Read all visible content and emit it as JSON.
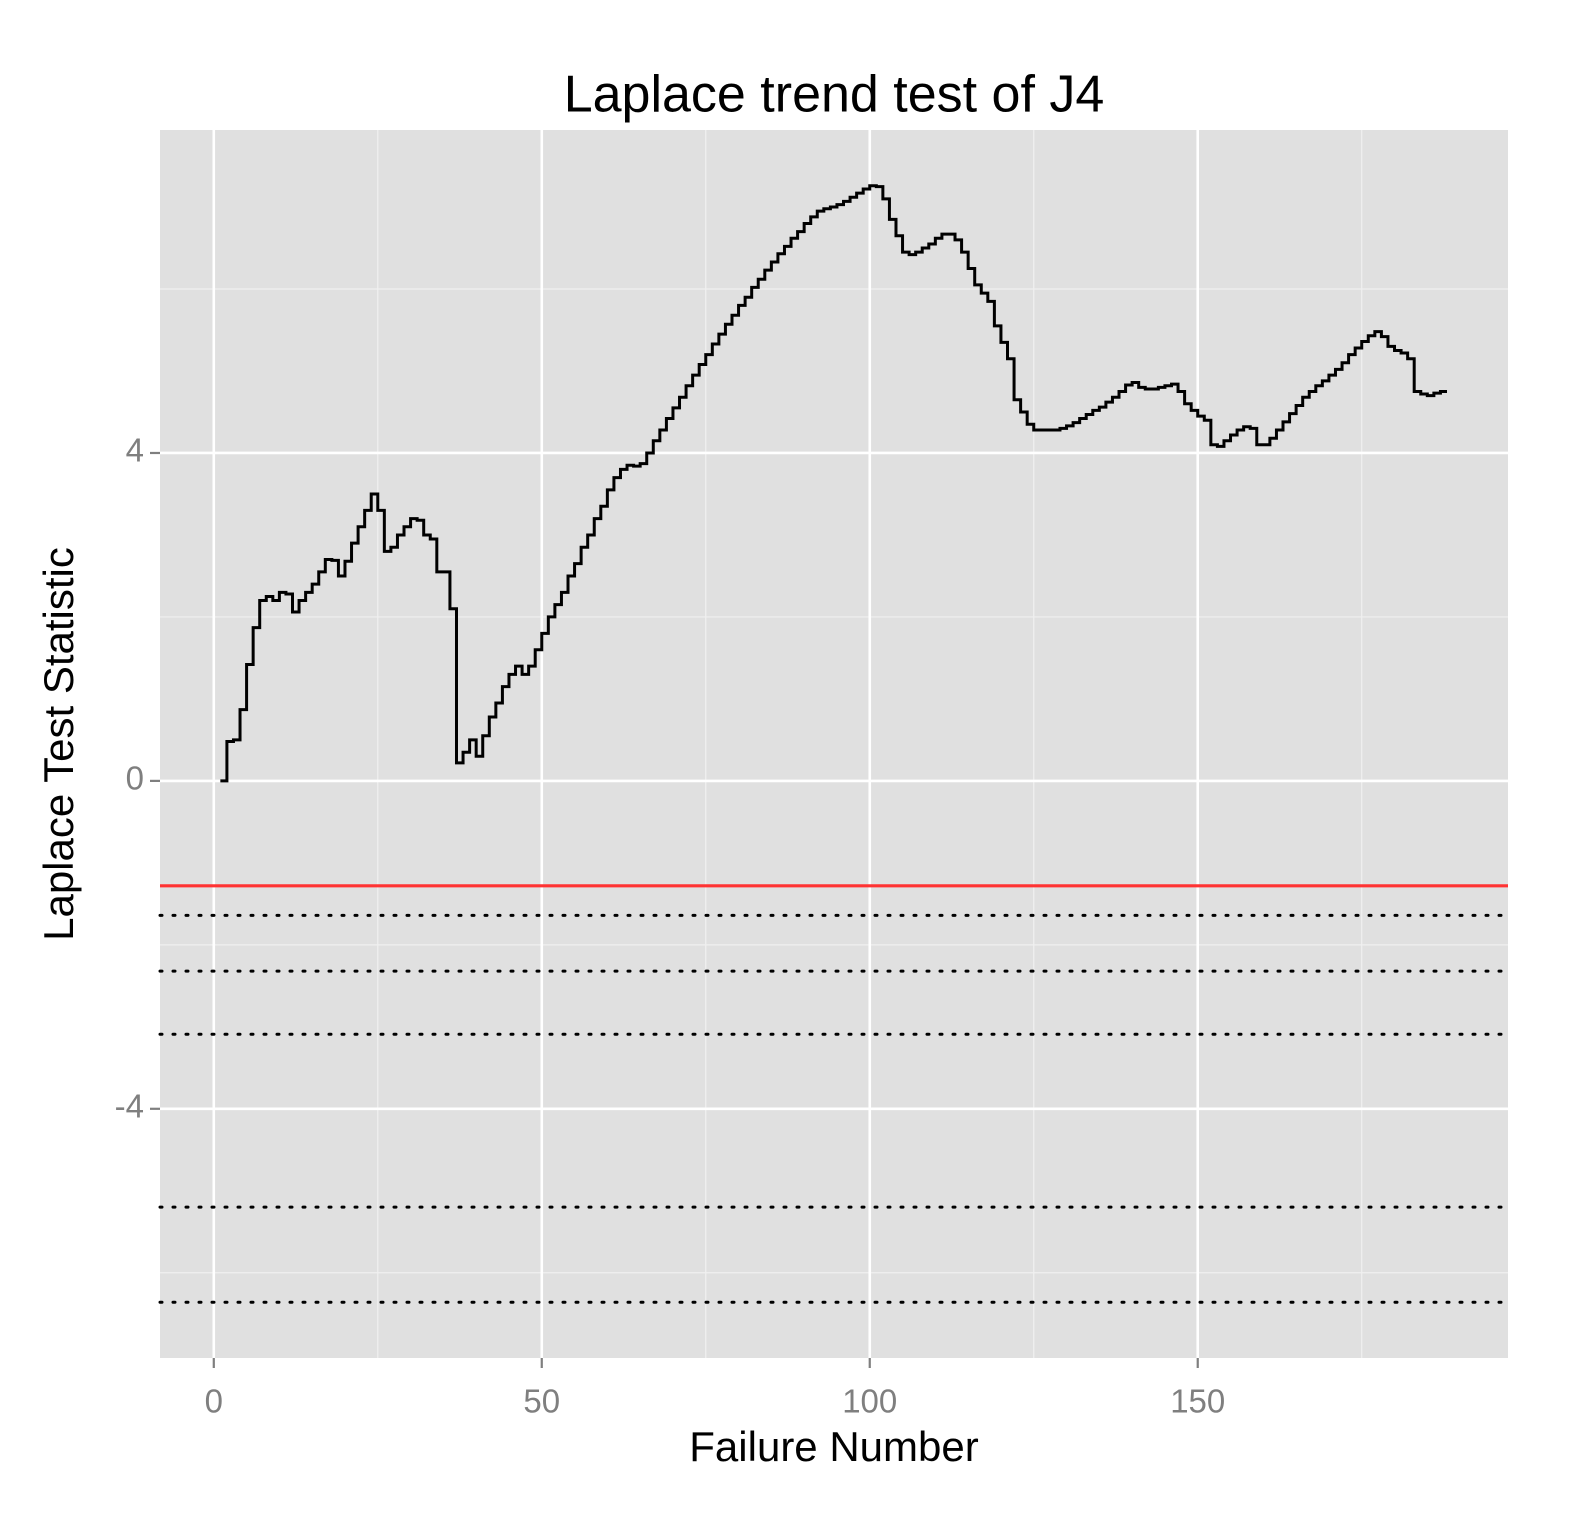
{
  "chart_data": {
    "type": "step",
    "title": "Laplace trend test of J4",
    "xlabel": "Failure Number",
    "ylabel": "Laplace Test Statistic",
    "xlim": [
      -8.2,
      197.3
    ],
    "ylim": [
      -7.04,
      7.94
    ],
    "xticks": [
      0,
      50,
      100,
      150
    ],
    "yticks": [
      -4,
      0,
      4
    ],
    "xminor": [
      25,
      75,
      125,
      175
    ],
    "yminor": [
      -6,
      -2,
      2,
      6
    ],
    "grid": true,
    "background": "#e0e0e0",
    "hlines": [
      {
        "value": -1.28,
        "color": "#ff3333",
        "style": "solid"
      },
      {
        "value": -1.64,
        "color": "#000000",
        "style": "dotted"
      },
      {
        "value": -2.32,
        "color": "#000000",
        "style": "dotted"
      },
      {
        "value": -3.09,
        "color": "#000000",
        "style": "dotted"
      },
      {
        "value": -5.2,
        "color": "#000000",
        "style": "dotted"
      },
      {
        "value": -6.36,
        "color": "#000000",
        "style": "dotted"
      }
    ],
    "x": [
      1,
      2,
      3,
      4,
      5,
      6,
      7,
      8,
      9,
      10,
      11,
      12,
      13,
      14,
      15,
      16,
      17,
      18,
      19,
      20,
      21,
      22,
      23,
      24,
      25,
      26,
      27,
      28,
      29,
      30,
      31,
      32,
      33,
      34,
      35,
      36,
      37,
      38,
      39,
      40,
      41,
      42,
      43,
      44,
      45,
      46,
      47,
      48,
      49,
      50,
      51,
      52,
      53,
      54,
      55,
      56,
      57,
      58,
      59,
      60,
      61,
      62,
      63,
      64,
      65,
      66,
      67,
      68,
      69,
      70,
      71,
      72,
      73,
      74,
      75,
      76,
      77,
      78,
      79,
      80,
      81,
      82,
      83,
      84,
      85,
      86,
      87,
      88,
      89,
      90,
      91,
      92,
      93,
      94,
      95,
      96,
      97,
      98,
      99,
      100,
      101,
      102,
      103,
      104,
      105,
      106,
      107,
      108,
      109,
      110,
      111,
      112,
      113,
      114,
      115,
      116,
      117,
      118,
      119,
      120,
      121,
      122,
      123,
      124,
      125,
      126,
      127,
      128,
      129,
      130,
      131,
      132,
      133,
      134,
      135,
      136,
      137,
      138,
      139,
      140,
      141,
      142,
      143,
      144,
      145,
      146,
      147,
      148,
      149,
      150,
      151,
      152,
      153,
      154,
      155,
      156,
      157,
      158,
      159,
      160,
      161,
      162,
      163,
      164,
      165,
      166,
      167,
      168,
      169,
      170,
      171,
      172,
      173,
      174,
      175,
      176,
      177,
      178,
      179,
      180,
      181,
      182,
      183,
      184,
      185,
      186,
      187,
      188
    ],
    "series": [
      {
        "color": "#000000",
        "values": [
          0,
          0.48,
          0.5,
          0.87,
          1.42,
          1.87,
          2.2,
          2.25,
          2.2,
          2.3,
          2.28,
          2.06,
          2.2,
          2.3,
          2.4,
          2.55,
          2.7,
          2.69,
          2.5,
          2.68,
          2.9,
          3.1,
          3.3,
          3.5,
          3.3,
          2.8,
          2.85,
          3.0,
          3.1,
          3.2,
          3.18,
          3.0,
          2.95,
          2.55,
          2.55,
          2.1,
          0.22,
          0.35,
          0.5,
          0.3,
          0.55,
          0.78,
          0.95,
          1.15,
          1.3,
          1.4,
          1.3,
          1.4,
          1.6,
          1.8,
          2.0,
          2.15,
          2.3,
          2.5,
          2.65,
          2.85,
          3.0,
          3.2,
          3.35,
          3.55,
          3.7,
          3.8,
          3.85,
          3.84,
          3.87,
          4.0,
          4.15,
          4.28,
          4.42,
          4.55,
          4.68,
          4.82,
          4.95,
          5.08,
          5.2,
          5.33,
          5.45,
          5.57,
          5.68,
          5.8,
          5.9,
          6.02,
          6.12,
          6.23,
          6.33,
          6.43,
          6.52,
          6.62,
          6.7,
          6.8,
          6.88,
          6.95,
          6.98,
          7.0,
          7.03,
          7.07,
          7.12,
          7.17,
          7.22,
          7.26,
          7.25,
          7.1,
          6.85,
          6.65,
          6.45,
          6.42,
          6.45,
          6.5,
          6.55,
          6.62,
          6.67,
          6.67,
          6.6,
          6.45,
          6.25,
          6.05,
          5.95,
          5.85,
          5.55,
          5.35,
          5.15,
          4.65,
          4.5,
          4.35,
          4.28,
          4.28,
          4.28,
          4.28,
          4.3,
          4.33,
          4.37,
          4.42,
          4.47,
          4.52,
          4.56,
          4.62,
          4.68,
          4.75,
          4.83,
          4.86,
          4.8,
          4.78,
          4.78,
          4.8,
          4.82,
          4.84,
          4.75,
          4.6,
          4.52,
          4.45,
          4.4,
          4.1,
          4.08,
          4.15,
          4.22,
          4.28,
          4.32,
          4.3,
          4.1,
          4.1,
          4.18,
          4.28,
          4.38,
          4.48,
          4.58,
          4.68,
          4.75,
          4.82,
          4.88,
          4.95,
          5.02,
          5.1,
          5.2,
          5.28,
          5.36,
          5.43,
          5.48,
          5.42,
          5.3,
          5.25,
          5.22,
          5.15,
          4.75,
          4.72,
          4.7,
          4.73,
          4.75,
          4.75
        ]
      }
    ]
  }
}
